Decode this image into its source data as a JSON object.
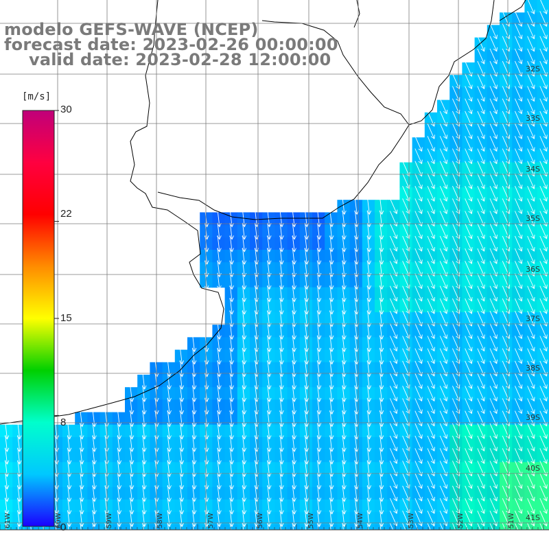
{
  "title": {
    "line1": "modelo GEFS-WAVE (NCEP)",
    "line2": "forecast date: 2023-02-26 00:00:00",
    "line3": "valid date: 2023-02-28 12:00:00"
  },
  "colorbar": {
    "unit": "[m/s]",
    "tick_labels": [
      "30",
      "22",
      "15",
      "8",
      "0"
    ],
    "tick_values": [
      30,
      22,
      15,
      8,
      0
    ],
    "min": 0,
    "max": 30,
    "colors": [
      "#1a00ff",
      "#00c8ff",
      "#00ffcc",
      "#00d000",
      "#ffff00",
      "#ff8c00",
      "#ff0000",
      "#ff0040",
      "#c0007a"
    ]
  },
  "map": {
    "lat_labels": [
      "32S",
      "33S",
      "34S",
      "35S",
      "36S",
      "37S",
      "38S",
      "39S",
      "40S",
      "41S"
    ],
    "lon_labels": [
      "61W",
      "60W",
      "59W",
      "58W",
      "57W",
      "56W",
      "55W",
      "54W",
      "53W",
      "52W",
      "51W"
    ],
    "land_color": "#ffffff",
    "grid_color": "#7a7a7a",
    "arrow_color": "#ffffff",
    "wind_direction": "north-northwest to south-southeast"
  }
}
